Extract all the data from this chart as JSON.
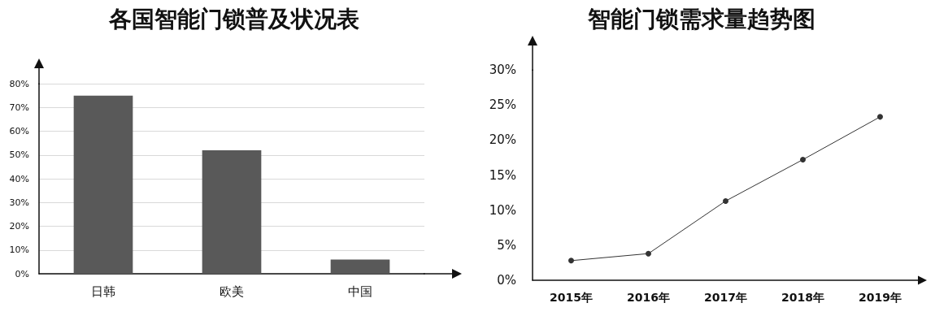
{
  "chart_data": [
    {
      "type": "bar",
      "title": "各国智能门锁普及状况表",
      "categories": [
        "日韩",
        "欧美",
        "中国"
      ],
      "values": [
        75,
        52,
        6
      ],
      "color": "#595959",
      "ylim": [
        0,
        80
      ],
      "yticks": [
        {
          "value": 0,
          "label": "0%"
        },
        {
          "value": 10,
          "label": "10%"
        },
        {
          "value": 20,
          "label": "20%"
        },
        {
          "value": 30,
          "label": "30%"
        },
        {
          "value": 40,
          "label": "40%"
        },
        {
          "value": 50,
          "label": "50%"
        },
        {
          "value": 60,
          "label": "60%"
        },
        {
          "value": 70,
          "label": "70%"
        },
        {
          "value": 80,
          "label": "80%"
        }
      ],
      "grid": "y"
    },
    {
      "type": "line",
      "title": "智能门锁需求量趋势图",
      "categories": [
        "2015年",
        "2016年",
        "2017年",
        "2018年",
        "2019年"
      ],
      "values": [
        2.8,
        3.8,
        11.3,
        17.2,
        23.3
      ],
      "color": "#333333",
      "marker": "circle",
      "line_style": "solid",
      "ylim": [
        0,
        30
      ],
      "yticks": [
        {
          "value": 0,
          "label": "0%"
        },
        {
          "value": 5,
          "label": "5%"
        },
        {
          "value": 10,
          "label": "10%"
        },
        {
          "value": 15,
          "label": "15%"
        },
        {
          "value": 20,
          "label": "20%"
        },
        {
          "value": 25,
          "label": "25%"
        },
        {
          "value": 30,
          "label": "30%"
        }
      ],
      "grid": false
    }
  ]
}
